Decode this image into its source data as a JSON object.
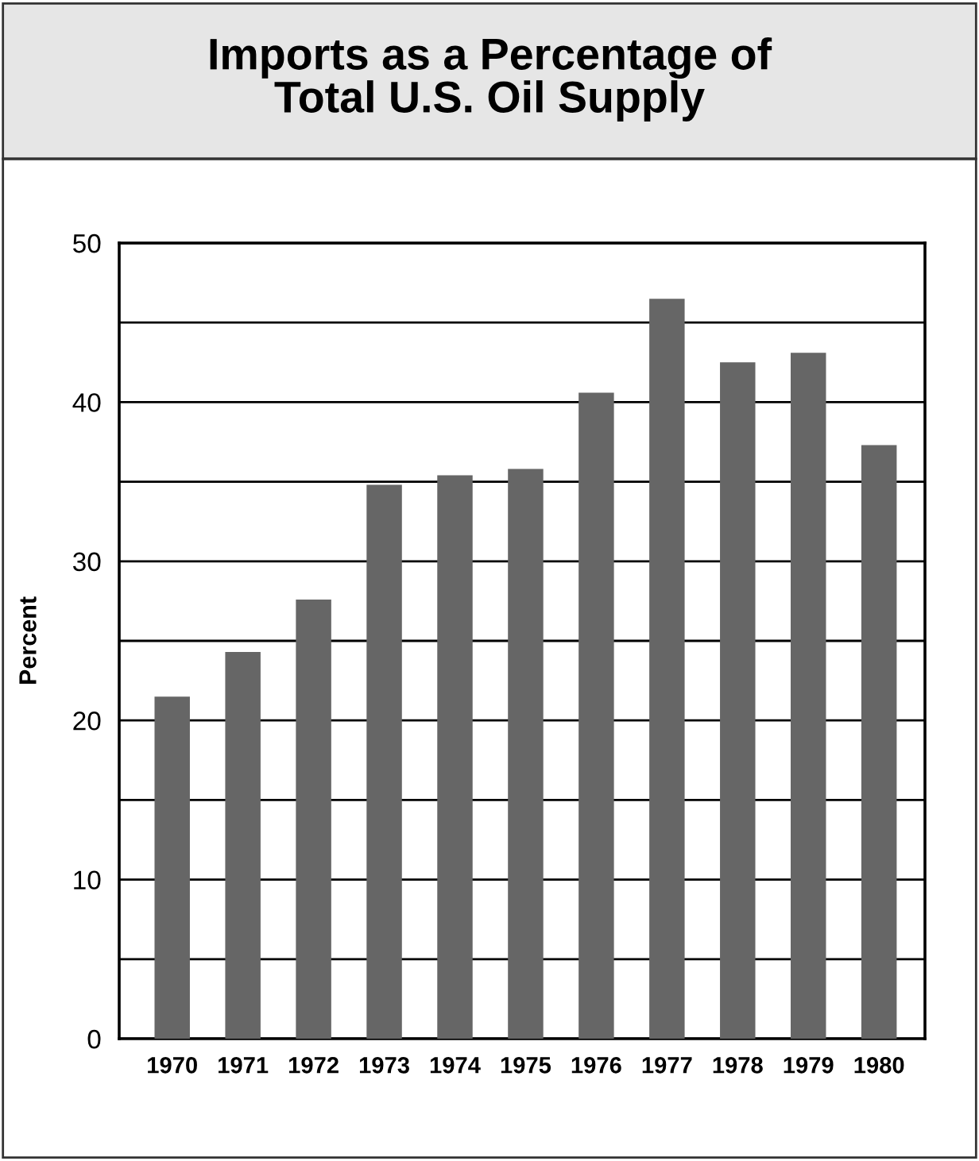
{
  "chart_data": {
    "type": "bar",
    "title": "Imports as a Percentage of\nTotal U.S. Oil Supply",
    "ylabel": "Percent",
    "categories": [
      "1970",
      "1971",
      "1972",
      "1973",
      "1974",
      "1975",
      "1976",
      "1977",
      "1978",
      "1979",
      "1980"
    ],
    "values": [
      21.5,
      24.3,
      27.6,
      34.8,
      35.4,
      35.8,
      40.6,
      46.5,
      42.5,
      43.1,
      37.3
    ],
    "color": "#666666",
    "ylim": [
      0,
      50
    ],
    "yticks": [
      0,
      {
        "value": 5,
        "label": null
      },
      10,
      {
        "value": 15,
        "label": null
      },
      20,
      {
        "value": 25,
        "label": null
      },
      30,
      {
        "value": 35,
        "label": null
      },
      40,
      {
        "value": 45,
        "label": null
      },
      50
    ],
    "grid": "y"
  }
}
